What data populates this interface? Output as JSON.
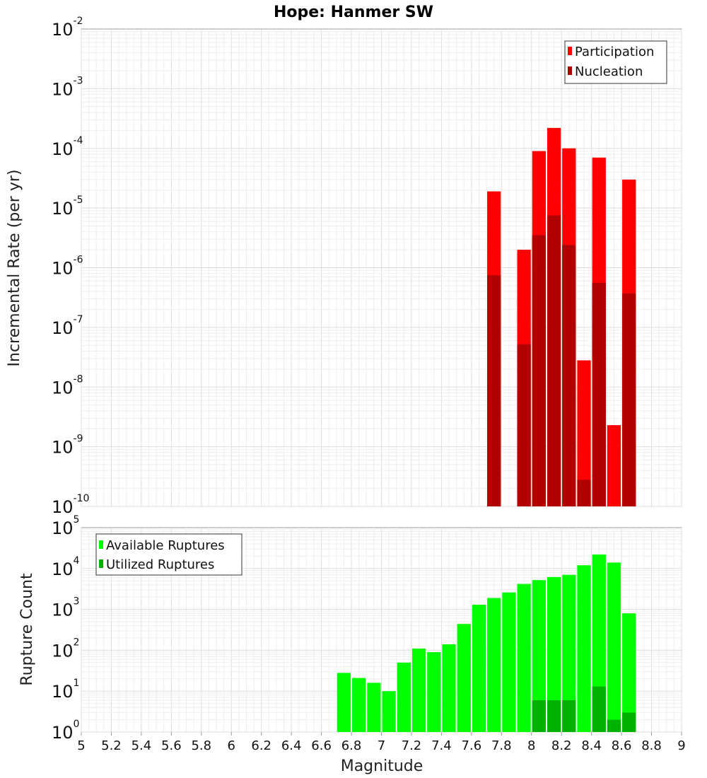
{
  "title": "Hope: Hanmer SW",
  "colors": {
    "participation": "#ff0000",
    "nucleation": "#b20000",
    "available": "#00ff00",
    "utilized": "#00b200"
  },
  "chart_data": [
    {
      "type": "bar",
      "panel": "top",
      "title": "Hope: Hanmer SW",
      "xlabel": "Magnitude",
      "ylabel": "Incremental Rate (per yr)",
      "y_scale": "log",
      "ylim": [
        1e-10,
        0.01
      ],
      "xlim": [
        5,
        9
      ],
      "y_tick_exponents": [
        -10,
        -9,
        -8,
        -7,
        -6,
        -5,
        -4,
        -3,
        -2
      ],
      "legend": {
        "position": "top-right",
        "entries": [
          "Participation",
          "Nucleation"
        ]
      },
      "grid": true,
      "bin_width": 0.1,
      "x": [
        7.75,
        7.95,
        8.05,
        8.15,
        8.25,
        8.35,
        8.45,
        8.55,
        8.65
      ],
      "series": [
        {
          "name": "Participation",
          "values": [
            1.9e-05,
            2e-06,
            9e-05,
            0.00022,
            0.0001,
            2.8e-08,
            7e-05,
            2.3e-09,
            3e-05
          ]
        },
        {
          "name": "Nucleation",
          "values": [
            7.5e-07,
            5.2e-08,
            3.5e-06,
            7.5e-06,
            2.4e-06,
            2.8e-10,
            5.6e-07,
            null,
            3.7e-07
          ]
        }
      ]
    },
    {
      "type": "bar",
      "panel": "bottom",
      "xlabel": "Magnitude",
      "ylabel": "Rupture Count",
      "y_scale": "log",
      "ylim": [
        1,
        100000
      ],
      "xlim": [
        5,
        9
      ],
      "y_tick_exponents": [
        0,
        1,
        2,
        3,
        4,
        5
      ],
      "x_ticks": [
        "5",
        "5.2",
        "5.4",
        "5.6",
        "5.8",
        "6",
        "6.2",
        "6.4",
        "6.6",
        "6.8",
        "7",
        "7.2",
        "7.4",
        "7.6",
        "7.8",
        "8",
        "8.2",
        "8.4",
        "8.6",
        "8.8",
        "9"
      ],
      "legend": {
        "position": "top-left",
        "entries": [
          "Available Ruptures",
          "Utilized Ruptures"
        ]
      },
      "grid": true,
      "bin_width": 0.1,
      "x": [
        6.75,
        6.85,
        6.95,
        7.05,
        7.15,
        7.25,
        7.35,
        7.45,
        7.55,
        7.65,
        7.75,
        7.85,
        7.95,
        8.05,
        8.15,
        8.25,
        8.35,
        8.45,
        8.55,
        8.65
      ],
      "series": [
        {
          "name": "Available Ruptures",
          "values": [
            28,
            21,
            16,
            10,
            50,
            110,
            90,
            140,
            440,
            1300,
            1900,
            2600,
            4200,
            5200,
            6200,
            7000,
            12000,
            22000,
            14000,
            800
          ]
        },
        {
          "name": "Utilized Ruptures",
          "values": [
            null,
            null,
            null,
            null,
            null,
            null,
            null,
            null,
            null,
            null,
            1,
            null,
            1,
            6,
            6,
            6,
            1,
            13,
            2,
            3
          ]
        }
      ]
    }
  ]
}
